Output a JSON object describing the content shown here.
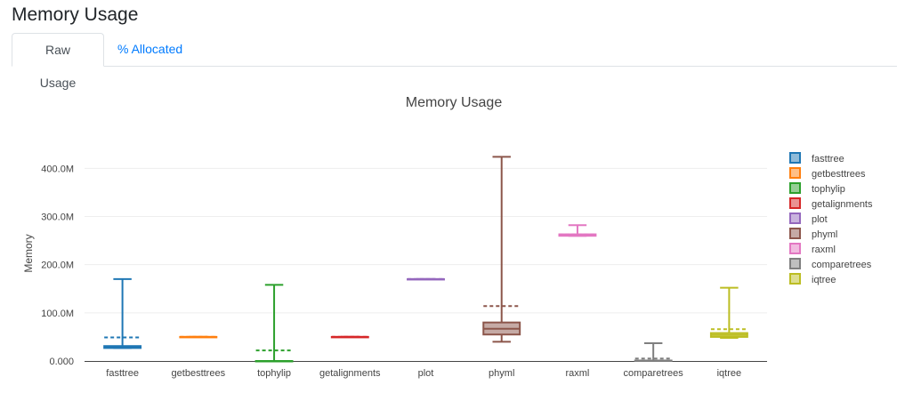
{
  "page": {
    "title": "Memory Usage"
  },
  "tabs": [
    {
      "label": "Raw Usage",
      "active": true
    },
    {
      "label": "% Allocated",
      "active": false
    }
  ],
  "chart_data": {
    "type": "box",
    "title": "Memory Usage",
    "xlabel": "",
    "ylabel": "Memory",
    "ylim": [
      0,
      445
    ],
    "y_unit": "M",
    "y_ticks": [
      {
        "value": 0,
        "label": "0.000"
      },
      {
        "value": 100,
        "label": "100.0M"
      },
      {
        "value": 200,
        "label": "200.0M"
      },
      {
        "value": 300,
        "label": "300.0M"
      },
      {
        "value": 400,
        "label": "400.0M"
      }
    ],
    "grid": true,
    "legend_position": "right",
    "mean_line": "dashed",
    "series": [
      {
        "name": "fasttree",
        "color": "#1f77b4",
        "min": 27,
        "q1": 27,
        "median": 29,
        "q3": 31,
        "max": 170,
        "mean": 49
      },
      {
        "name": "getbesttrees",
        "color": "#ff7f0e",
        "min": 50,
        "q1": 50,
        "median": 50,
        "q3": 50,
        "max": 50,
        "mean": 50
      },
      {
        "name": "tophylip",
        "color": "#2ca02c",
        "min": 0,
        "q1": 0,
        "median": 0,
        "q3": 0,
        "max": 158,
        "mean": 22
      },
      {
        "name": "getalignments",
        "color": "#d62728",
        "min": 50,
        "q1": 50,
        "median": 50,
        "q3": 50,
        "max": 50,
        "mean": 50
      },
      {
        "name": "plot",
        "color": "#9467bd",
        "min": 170,
        "q1": 170,
        "median": 170,
        "q3": 170,
        "max": 170,
        "mean": 170
      },
      {
        "name": "phyml",
        "color": "#8c564b",
        "min": 40,
        "q1": 55,
        "median": 67,
        "q3": 80,
        "max": 424,
        "mean": 114
      },
      {
        "name": "raxml",
        "color": "#e377c2",
        "min": 260,
        "q1": 260,
        "median": 261,
        "q3": 263,
        "max": 282,
        "mean": 263
      },
      {
        "name": "comparetrees",
        "color": "#7f7f7f",
        "min": 0,
        "q1": 0,
        "median": 0,
        "q3": 1,
        "max": 37,
        "mean": 5
      },
      {
        "name": "iqtree",
        "color": "#bcbd22",
        "min": 48,
        "q1": 50,
        "median": 54,
        "q3": 58,
        "max": 152,
        "mean": 66
      }
    ]
  }
}
